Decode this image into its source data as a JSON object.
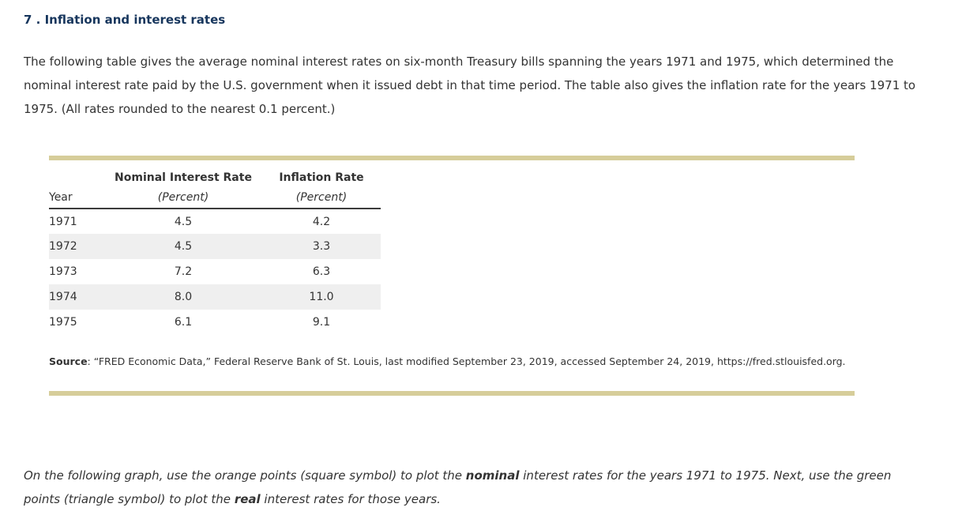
{
  "page": {
    "title": "7 . Inflation and interest rates",
    "intro": "The following table gives the average nominal interest rates on six-month Treasury bills spanning the years 1971 and 1975, which determined the nominal interest rate paid by the U.S. government when it issued debt in that time period. The table also gives the inflation rate for the years 1971 to 1975. (All rates rounded to the nearest 0.1 percent.)"
  },
  "table": {
    "group_headers": {
      "nominal": "Nominal Interest Rate",
      "inflation": "Inflation Rate"
    },
    "sub_headers": {
      "year": "Year",
      "nominal_unit": "(Percent)",
      "inflation_unit": "(Percent)"
    },
    "rows": [
      {
        "year": "1971",
        "nominal": "4.5",
        "inflation": "4.2"
      },
      {
        "year": "1972",
        "nominal": "4.5",
        "inflation": "3.3"
      },
      {
        "year": "1973",
        "nominal": "7.2",
        "inflation": "6.3"
      },
      {
        "year": "1974",
        "nominal": "8.0",
        "inflation": "11.0"
      },
      {
        "year": "1975",
        "nominal": "6.1",
        "inflation": "9.1"
      }
    ]
  },
  "source": {
    "label": "Source",
    "text": ": “FRED Economic Data,” Federal Reserve Bank of St. Louis, last modified September 23, 2019, accessed September 24, 2019, https://fred.stlouisfed.org."
  },
  "instructions": {
    "part1": "On the following graph, use the orange points (square symbol) to plot the ",
    "bold1": "nominal",
    "part2": " interest rates for the years 1971 to 1975. Next, use the green points (triangle symbol) to plot the ",
    "bold2": "real",
    "part3": " interest rates for those years."
  },
  "colors": {
    "title_navy": "#17365d",
    "body_text": "#333333",
    "divider_tan": "#d6cd9a",
    "row_shade": "#efefef"
  },
  "chart_data": {
    "type": "table",
    "title": "Nominal interest rate and inflation rate, 1971-1975",
    "categories": [
      "1971",
      "1972",
      "1973",
      "1974",
      "1975"
    ],
    "series": [
      {
        "name": "Nominal Interest Rate (Percent)",
        "values": [
          4.5,
          4.5,
          7.2,
          8.0,
          6.1
        ]
      },
      {
        "name": "Inflation Rate (Percent)",
        "values": [
          4.2,
          3.3,
          6.3,
          11.0,
          9.1
        ]
      }
    ]
  }
}
